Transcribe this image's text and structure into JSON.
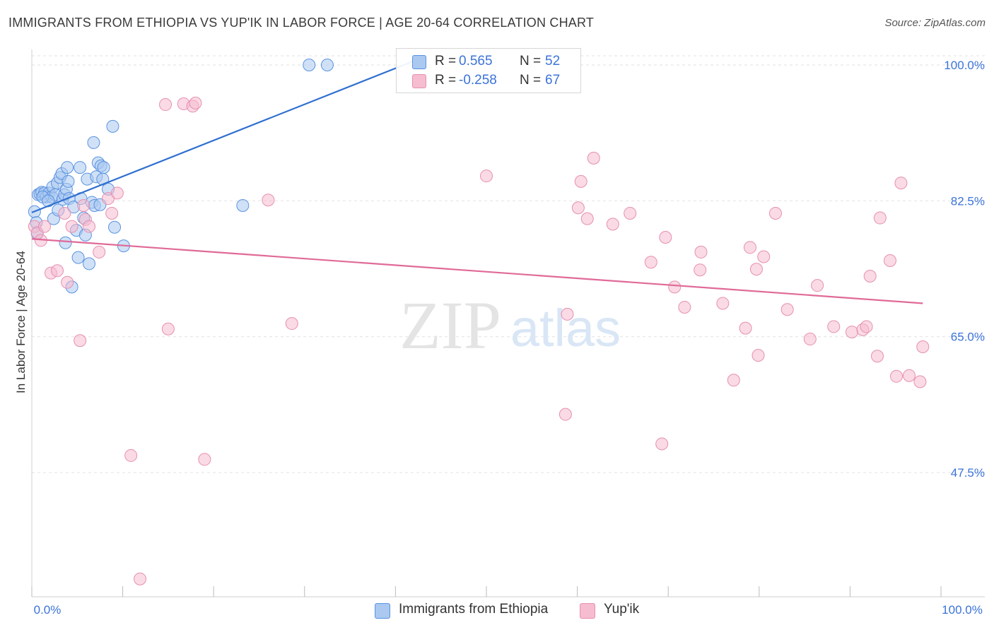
{
  "header": {
    "title": "IMMIGRANTS FROM ETHIOPIA VS YUP'IK IN LABOR FORCE | AGE 20-64 CORRELATION CHART",
    "source": "Source: ZipAtlas.com"
  },
  "watermark": {
    "zip": "ZIP",
    "atlas": "atlas"
  },
  "legend": {
    "r_label": "R =",
    "n_label": "N =",
    "series": [
      {
        "r": "0.565",
        "n": "52"
      },
      {
        "r": "-0.258",
        "n": "67"
      }
    ]
  },
  "bottom_legend": {
    "series1": "Immigrants from Ethiopia",
    "series2": "Yup'ik"
  },
  "colors": {
    "blue_fill": "#aac8f0",
    "blue_stroke": "#5b93e0",
    "blue_line": "#2f6fd0",
    "pink_fill": "#f6bcd0",
    "pink_stroke": "#e690b0",
    "pink_line": "#e06a98",
    "axis_text": "#3b73d9",
    "grid": "#e2e2e2"
  },
  "chart_data": {
    "type": "scatter",
    "title": "IMMIGRANTS FROM ETHIOPIA VS YUP'IK IN LABOR FORCE | AGE 20-64 CORRELATION CHART",
    "xlabel": "",
    "ylabel": "In Labor Force | Age 20-64",
    "xlim": [
      0,
      100
    ],
    "ylim": [
      31.5,
      102
    ],
    "x_tick_labels": [
      "0.0%",
      "100.0%"
    ],
    "y_ticks": [
      47.5,
      65.0,
      82.5,
      100.0
    ],
    "y_tick_labels": [
      "47.5%",
      "65.0%",
      "82.5%",
      "100.0%"
    ],
    "grid": true,
    "series": [
      {
        "name": "Immigrants from Ethiopia",
        "r": 0.565,
        "n": 52,
        "trend": {
          "x1": 0,
          "y1": 81.0,
          "x2": 42,
          "y2": 100.5
        },
        "points": [
          [
            0.3,
            81.1
          ],
          [
            0.5,
            79.7
          ],
          [
            0.7,
            83.3
          ],
          [
            0.9,
            83.4
          ],
          [
            1.1,
            83.6
          ],
          [
            1.4,
            83.5
          ],
          [
            1.6,
            83.0
          ],
          [
            1.9,
            83.5
          ],
          [
            2.2,
            83.0
          ],
          [
            2.3,
            84.3
          ],
          [
            2.4,
            80.2
          ],
          [
            2.6,
            83.3
          ],
          [
            2.8,
            84.8
          ],
          [
            2.9,
            81.3
          ],
          [
            3.1,
            85.5
          ],
          [
            3.3,
            86.0
          ],
          [
            3.4,
            82.7
          ],
          [
            3.6,
            83.3
          ],
          [
            3.7,
            77.1
          ],
          [
            3.8,
            84.0
          ],
          [
            3.9,
            86.8
          ],
          [
            4.0,
            85.0
          ],
          [
            4.1,
            82.8
          ],
          [
            4.4,
            71.4
          ],
          [
            4.6,
            81.7
          ],
          [
            4.9,
            78.7
          ],
          [
            5.1,
            75.2
          ],
          [
            5.3,
            86.8
          ],
          [
            5.4,
            82.8
          ],
          [
            5.7,
            80.3
          ],
          [
            5.9,
            78.1
          ],
          [
            6.1,
            85.3
          ],
          [
            6.3,
            74.4
          ],
          [
            6.6,
            82.3
          ],
          [
            6.8,
            90.0
          ],
          [
            6.9,
            81.9
          ],
          [
            7.1,
            85.6
          ],
          [
            7.3,
            87.4
          ],
          [
            7.5,
            82.0
          ],
          [
            7.6,
            87.0
          ],
          [
            7.8,
            85.3
          ],
          [
            7.9,
            86.8
          ],
          [
            8.4,
            84.0
          ],
          [
            8.9,
            92.1
          ],
          [
            9.1,
            79.1
          ],
          [
            10.1,
            76.7
          ],
          [
            23.2,
            81.9
          ],
          [
            30.5,
            100.0
          ],
          [
            32.5,
            100.0
          ],
          [
            0.6,
            78.3
          ],
          [
            1.2,
            83.0
          ],
          [
            1.8,
            82.5
          ]
        ]
      },
      {
        "name": "Yup'ik",
        "r": -0.258,
        "n": 67,
        "trend": {
          "x1": 0,
          "y1": 77.6,
          "x2": 98,
          "y2": 69.3
        },
        "points": [
          [
            0.3,
            79.2
          ],
          [
            0.6,
            78.4
          ],
          [
            1.0,
            77.4
          ],
          [
            1.4,
            79.2
          ],
          [
            2.1,
            73.2
          ],
          [
            2.8,
            73.5
          ],
          [
            3.6,
            80.9
          ],
          [
            3.9,
            72.0
          ],
          [
            4.4,
            79.2
          ],
          [
            5.3,
            64.5
          ],
          [
            5.7,
            81.9
          ],
          [
            5.9,
            80.1
          ],
          [
            6.3,
            79.2
          ],
          [
            7.4,
            75.9
          ],
          [
            8.4,
            82.8
          ],
          [
            8.8,
            80.9
          ],
          [
            9.4,
            83.5
          ],
          [
            10.9,
            49.7
          ],
          [
            11.9,
            33.8
          ],
          [
            14.7,
            94.9
          ],
          [
            15.0,
            66.0
          ],
          [
            16.7,
            95.0
          ],
          [
            17.7,
            94.7
          ],
          [
            18.0,
            95.1
          ],
          [
            19.0,
            49.2
          ],
          [
            26.0,
            82.6
          ],
          [
            28.6,
            66.7
          ],
          [
            50.0,
            85.7
          ],
          [
            58.7,
            55.0
          ],
          [
            58.9,
            67.9
          ],
          [
            60.1,
            81.6
          ],
          [
            60.4,
            85.0
          ],
          [
            61.1,
            80.2
          ],
          [
            61.8,
            88.0
          ],
          [
            63.9,
            79.5
          ],
          [
            65.8,
            80.9
          ],
          [
            68.1,
            74.6
          ],
          [
            69.3,
            51.2
          ],
          [
            69.7,
            77.8
          ],
          [
            70.7,
            71.4
          ],
          [
            71.8,
            68.8
          ],
          [
            73.6,
            75.9
          ],
          [
            73.5,
            73.6
          ],
          [
            76.0,
            69.3
          ],
          [
            77.2,
            59.4
          ],
          [
            78.5,
            66.1
          ],
          [
            79.0,
            76.5
          ],
          [
            79.7,
            73.7
          ],
          [
            79.9,
            62.6
          ],
          [
            80.5,
            75.3
          ],
          [
            81.8,
            80.9
          ],
          [
            83.1,
            68.5
          ],
          [
            85.6,
            64.7
          ],
          [
            86.4,
            71.6
          ],
          [
            88.2,
            66.3
          ],
          [
            90.2,
            65.6
          ],
          [
            91.4,
            65.9
          ],
          [
            91.8,
            66.3
          ],
          [
            92.2,
            72.8
          ],
          [
            93.0,
            62.5
          ],
          [
            93.3,
            80.3
          ],
          [
            94.4,
            74.8
          ],
          [
            95.1,
            59.9
          ],
          [
            95.6,
            84.8
          ],
          [
            96.5,
            60.0
          ],
          [
            97.7,
            59.2
          ],
          [
            98.0,
            63.7
          ]
        ]
      }
    ]
  }
}
